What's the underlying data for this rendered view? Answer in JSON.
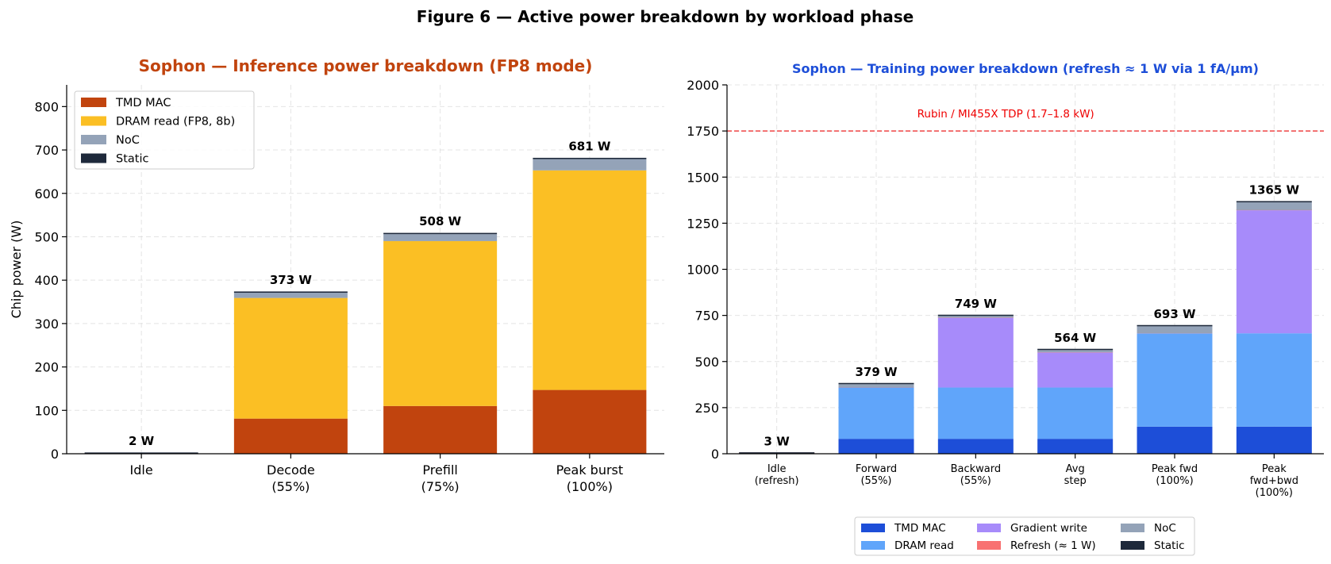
{
  "figure_title": "Figure 6 — Active power breakdown by workload phase",
  "chart_data": [
    {
      "type": "bar",
      "stacked": true,
      "title": "Sophon — Inference power breakdown (FP8 mode)",
      "title_color": "#c1440e",
      "xlabel": "",
      "ylabel": "Chip power (W)",
      "ylim": [
        0,
        850
      ],
      "yticks": [
        0,
        100,
        200,
        300,
        400,
        500,
        600,
        700,
        800
      ],
      "grid": true,
      "legend_position": "top-left",
      "categories": [
        [
          "Idle"
        ],
        [
          "Decode",
          "(55%)"
        ],
        [
          "Prefill",
          "(75%)"
        ],
        [
          "Peak burst",
          "(100%)"
        ]
      ],
      "series": [
        {
          "name": "TMD MAC",
          "color": "#c1440e",
          "values": [
            0,
            81,
            110,
            147
          ]
        },
        {
          "name": "DRAM read (FP8, 8b)",
          "color": "#fbbf24",
          "values": [
            0,
            278,
            380,
            506
          ]
        },
        {
          "name": "NoC",
          "color": "#94a3b8",
          "values": [
            0,
            12,
            16,
            26
          ]
        },
        {
          "name": "Static",
          "color": "#1e293b",
          "values": [
            2,
            2,
            2,
            2
          ]
        }
      ],
      "totals_labels": [
        "2 W",
        "373 W",
        "508 W",
        "681 W"
      ]
    },
    {
      "type": "bar",
      "stacked": true,
      "title": "Sophon — Training power breakdown (refresh ≈ 1 W via 1 fA/μm)",
      "title_color": "#1d4ed8",
      "xlabel": "",
      "ylabel": "",
      "ylim": [
        0,
        2000
      ],
      "yticks": [
        0,
        250,
        500,
        750,
        1000,
        1250,
        1500,
        1750,
        2000
      ],
      "grid": true,
      "legend_position": "bottom-center",
      "categories": [
        [
          "Idle",
          "(refresh)"
        ],
        [
          "Forward",
          "(55%)"
        ],
        [
          "Backward",
          "(55%)"
        ],
        [
          "Avg",
          "step"
        ],
        [
          "Peak fwd",
          "(100%)"
        ],
        [
          "Peak",
          "fwd+bwd",
          "(100%)"
        ]
      ],
      "series": [
        {
          "name": "TMD MAC",
          "color": "#1d4ed8",
          "values": [
            0,
            81,
            81,
            81,
            147,
            147
          ]
        },
        {
          "name": "DRAM read",
          "color": "#60a5fa",
          "values": [
            0,
            278,
            278,
            278,
            506,
            506
          ]
        },
        {
          "name": "Gradient write",
          "color": "#a78bfa",
          "values": [
            0,
            0,
            378,
            190,
            0,
            667
          ]
        },
        {
          "name": "Refresh (≈ 1 W)",
          "color": "#f87171",
          "values": [
            1,
            1,
            1,
            1,
            1,
            1
          ]
        },
        {
          "name": "NoC",
          "color": "#94a3b8",
          "values": [
            0,
            17,
            9,
            12,
            37,
            42
          ]
        },
        {
          "name": "Static",
          "color": "#1e293b",
          "values": [
            2,
            2,
            2,
            2,
            2,
            2
          ]
        }
      ],
      "totals_labels": [
        "3 W",
        "379 W",
        "749 W",
        "564 W",
        "693 W",
        "1365 W"
      ],
      "reference_line": {
        "value": 1750,
        "label": "Rubin / MI455X TDP (1.7–1.8 kW)",
        "color": "#ef4444"
      }
    }
  ]
}
